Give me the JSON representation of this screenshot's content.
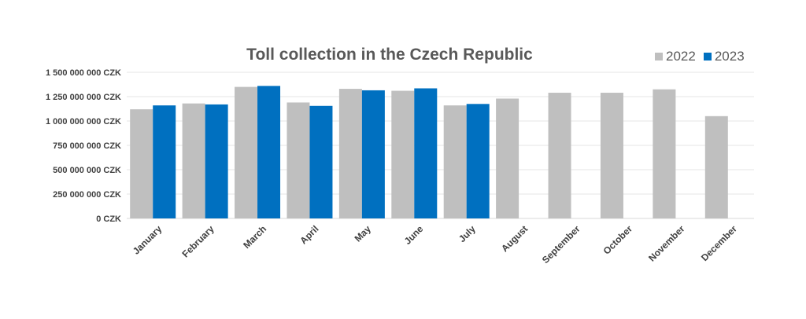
{
  "chart_data": {
    "type": "bar",
    "title": "Toll collection in the Czech Republic",
    "categories": [
      "January",
      "February",
      "March",
      "April",
      "May",
      "June",
      "July",
      "August",
      "September",
      "October",
      "November",
      "December"
    ],
    "series": [
      {
        "name": "2022",
        "color": "#bfbfbf",
        "values": [
          1120000000,
          1180000000,
          1350000000,
          1190000000,
          1330000000,
          1310000000,
          1160000000,
          1230000000,
          1290000000,
          1290000000,
          1325000000,
          1050000000
        ]
      },
      {
        "name": "2023",
        "color": "#0070c0",
        "values": [
          1160000000,
          1170000000,
          1360000000,
          1155000000,
          1315000000,
          1335000000,
          1175000000,
          null,
          null,
          null,
          null,
          null
        ]
      }
    ],
    "ylim": [
      0,
      1500000000
    ],
    "yticks": [
      0,
      250000000,
      500000000,
      750000000,
      1000000000,
      1250000000,
      1500000000
    ],
    "ytick_labels": [
      "0 CZK",
      "250 000 000 CZK",
      "500 000 000 CZK",
      "750 000 000 CZK",
      "1 000 000 000 CZK",
      "1 250 000 000 CZK",
      "1 500 000 000 CZK"
    ],
    "xlabel": "",
    "ylabel": "",
    "grid": true,
    "legend_position": "top-right"
  }
}
